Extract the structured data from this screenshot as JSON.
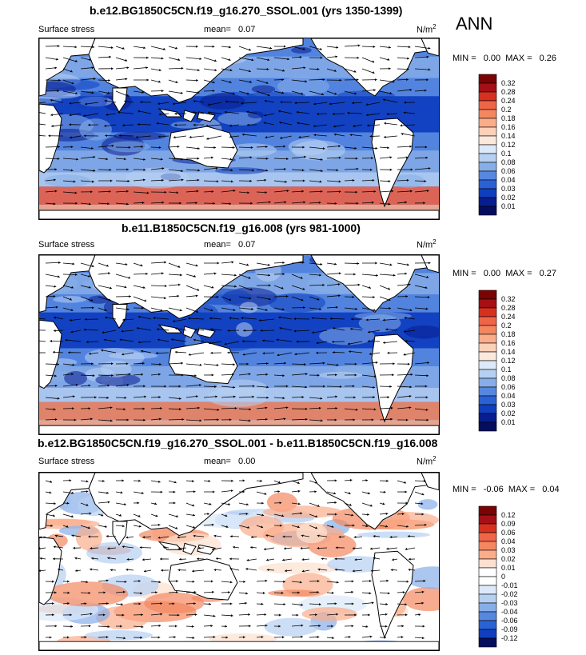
{
  "season": "ANN",
  "panels": [
    {
      "title": "b.e12.BG1850C5CN.f19_g16.270_SSOL.001 (yrs 1350-1399)",
      "variable": "Surface stress",
      "mean_label": "mean=",
      "mean_value": "0.07",
      "units": "N/m",
      "units_exp": "2",
      "min_label": "MIN =",
      "min_value": "0.00",
      "max_label": "MAX =",
      "max_value": "0.26",
      "colorbar_levels": [
        "0.32",
        "0.28",
        "0.24",
        "0.2",
        "0.18",
        "0.16",
        "0.14",
        "0.12",
        "0.1",
        "0.08",
        "0.06",
        "0.04",
        "0.03",
        "0.02",
        "0.01"
      ]
    },
    {
      "title": "b.e11.B1850C5CN.f19_g16.008 (yrs 981-1000)",
      "variable": "Surface stress",
      "mean_label": "mean=",
      "mean_value": "0.07",
      "units": "N/m",
      "units_exp": "2",
      "min_label": "MIN =",
      "min_value": "0.00",
      "max_label": "MAX =",
      "max_value": "0.27",
      "colorbar_levels": [
        "0.32",
        "0.28",
        "0.24",
        "0.2",
        "0.18",
        "0.16",
        "0.14",
        "0.12",
        "0.1",
        "0.08",
        "0.06",
        "0.04",
        "0.03",
        "0.02",
        "0.01"
      ]
    },
    {
      "title": "b.e12.BG1850C5CN.f19_g16.270_SSOL.001 - b.e11.B1850C5CN.f19_g16.008",
      "variable": "Surface stress",
      "mean_label": "mean=",
      "mean_value": "0.00",
      "units": "N/m",
      "units_exp": "2",
      "min_label": "MIN =",
      "min_value": "-0.06",
      "max_label": "MAX =",
      "max_value": "0.04",
      "colorbar_levels": [
        "0.12",
        "0.09",
        "0.06",
        "0.04",
        "0.03",
        "0.02",
        "0.01",
        "0",
        "-0.01",
        "-0.02",
        "-0.03",
        "-0.04",
        "-0.06",
        "-0.09",
        "-0.12"
      ]
    }
  ],
  "colors": {
    "abs_scale": [
      "#7a0403",
      "#a50f15",
      "#d7301f",
      "#ef6548",
      "#f4875f",
      "#fbad8a",
      "#fdd0b8",
      "#fde8dc",
      "#dce9f9",
      "#b6d0f2",
      "#87aee8",
      "#5688e0",
      "#2a62d6",
      "#0f3fbf",
      "#081d8f",
      "#050d5e"
    ],
    "diff_scale": [
      "#7a0403",
      "#a50f15",
      "#d7301f",
      "#ef6548",
      "#f4875f",
      "#fbad8a",
      "#fde0cf",
      "#ffffff",
      "#ffffff",
      "#dce9f9",
      "#b6d0f2",
      "#87aee8",
      "#5688e0",
      "#2a62d6",
      "#0f3fbf",
      "#050d5e"
    ],
    "land": "#ffffff"
  },
  "chart_data": [
    {
      "type": "heatmap",
      "title": "b.e12.BG1850C5CN.f19_g16.270_SSOL.001 (yrs 1350-1399)",
      "field": "Surface stress",
      "units": "N/m2",
      "mean": 0.07,
      "min": 0.0,
      "max": 0.26,
      "overlay": "wind stress vectors",
      "legend": "right"
    },
    {
      "type": "heatmap",
      "title": "b.e11.B1850C5CN.f19_g16.008 (yrs 981-1000)",
      "field": "Surface stress",
      "units": "N/m2",
      "mean": 0.07,
      "min": 0.0,
      "max": 0.27,
      "overlay": "wind stress vectors",
      "legend": "right"
    },
    {
      "type": "heatmap",
      "title": "b.e12.BG1850C5CN.f19_g16.270_SSOL.001 - b.e11.B1850C5CN.f19_g16.008",
      "field": "Surface stress",
      "units": "N/m2",
      "mean": 0.0,
      "min": -0.06,
      "max": 0.04,
      "overlay": "wind stress difference vectors",
      "legend": "right"
    }
  ]
}
